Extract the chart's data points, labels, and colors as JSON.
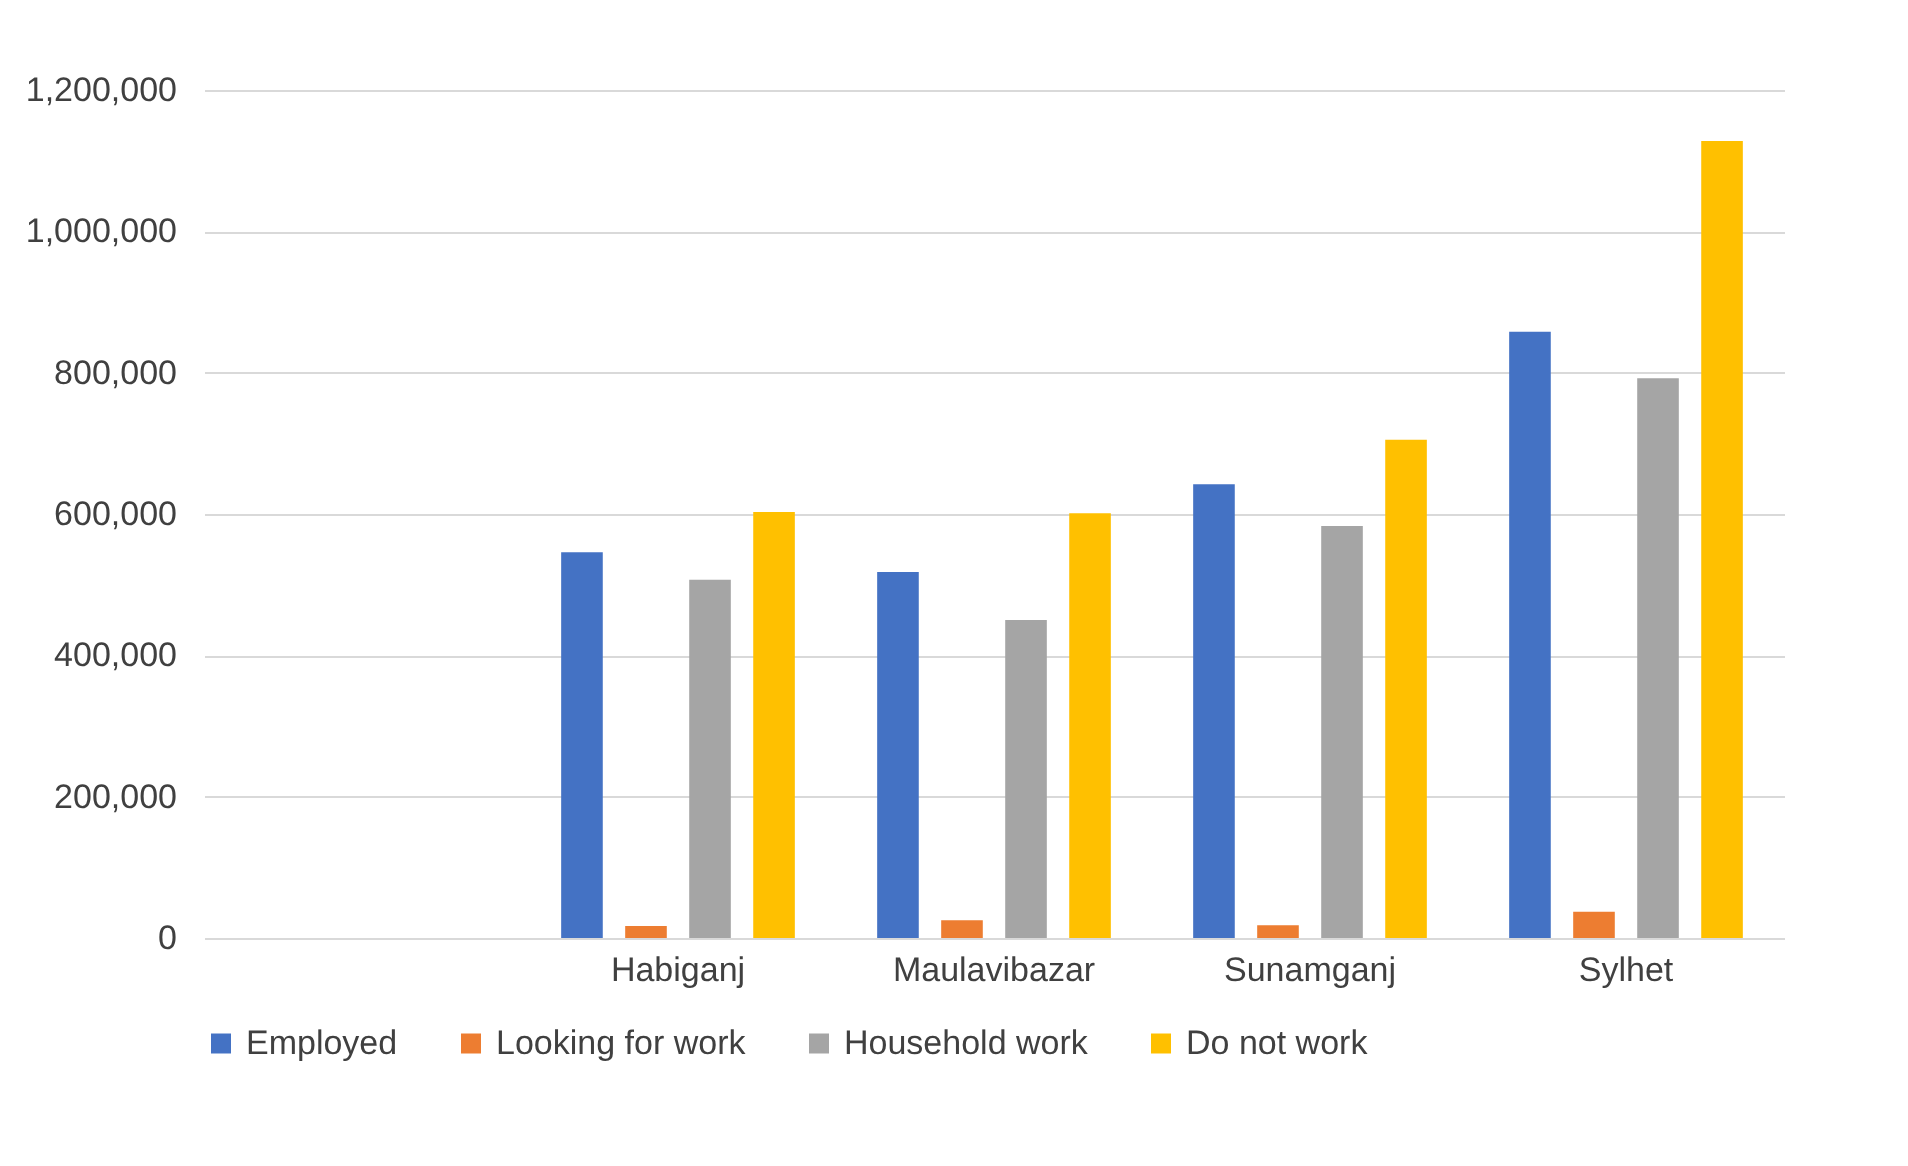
{
  "chart_data": {
    "type": "bar",
    "categories": [
      null,
      "Habiganj",
      "Maulavibazar",
      "Sunamganj",
      "Sylhet"
    ],
    "series": [
      {
        "name": "Employed",
        "color": "#4472c4",
        "values": [
          null,
          546000,
          518000,
          642000,
          858000
        ]
      },
      {
        "name": "Looking for work",
        "color": "#ed7d31",
        "values": [
          null,
          17000,
          25000,
          18000,
          37000
        ]
      },
      {
        "name": "Household work",
        "color": "#a5a5a5",
        "values": [
          null,
          507000,
          450000,
          583000,
          792000
        ]
      },
      {
        "name": "Do not work",
        "color": "#ffc000",
        "values": [
          null,
          603000,
          601000,
          705000,
          1128000
        ]
      }
    ],
    "ylim": [
      0,
      1200000
    ],
    "yticks": [
      0,
      {
        "value": 200000,
        "label": "200,000"
      },
      {
        "value": 400000,
        "label": "400,000"
      },
      {
        "value": 600000,
        "label": "600,000"
      },
      {
        "value": 800000,
        "label": "800,000"
      },
      {
        "value": 1000000,
        "label": "1,000,000"
      },
      {
        "value": 1200000,
        "label": "1,200,000"
      }
    ],
    "grid": "y",
    "legend": "bottom"
  }
}
